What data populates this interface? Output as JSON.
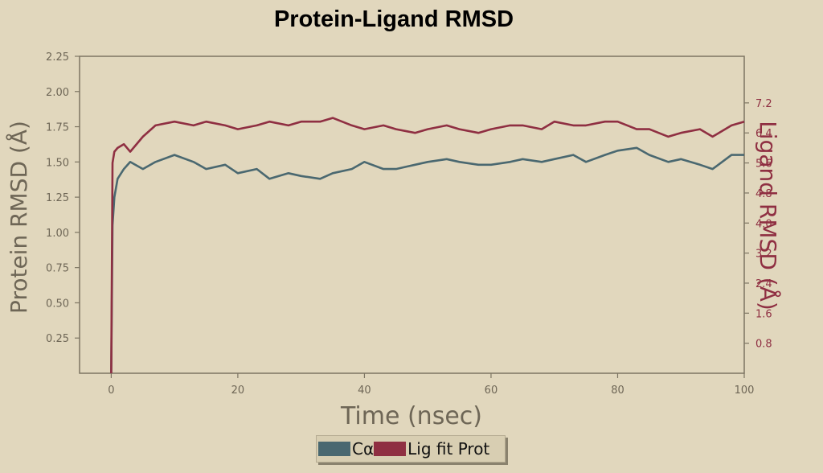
{
  "chart_data": {
    "type": "line",
    "title": "Protein-Ligand RMSD",
    "xlabel": "Time (nsec)",
    "ylabel": "Protein RMSD (Å)",
    "y2label": "Ligand RMSD (Å)",
    "xlim": [
      -5,
      100
    ],
    "ylim": [
      0,
      2.25
    ],
    "y2lim": [
      0,
      8.44
    ],
    "x_ticks": [
      "0",
      "20",
      "40",
      "60",
      "80",
      "100"
    ],
    "y_ticks": [
      "0.25",
      "0.50",
      "0.75",
      "1.00",
      "1.25",
      "1.50",
      "1.75",
      "2.00",
      "2.25"
    ],
    "y2_ticks": [
      "0.8",
      "1.6",
      "2.4",
      "3.2",
      "4.0",
      "4.8",
      "5.6",
      "6.4",
      "7.2"
    ],
    "grid": false,
    "legend_position": "bottom-center",
    "colors": {
      "background": "#e1d7bd",
      "axes": "#7d7563",
      "ca": "#4a6870",
      "lig": "#8f2f42"
    },
    "series": [
      {
        "name": "Cα",
        "axis": "left",
        "x": [
          0,
          0.2,
          0.5,
          1,
          2,
          3,
          5,
          7,
          10,
          13,
          15,
          18,
          20,
          23,
          25,
          28,
          30,
          33,
          35,
          38,
          40,
          43,
          45,
          48,
          50,
          53,
          55,
          58,
          60,
          63,
          65,
          68,
          70,
          73,
          75,
          78,
          80,
          83,
          85,
          88,
          90,
          93,
          95,
          98,
          100
        ],
        "values": [
          0,
          1.05,
          1.25,
          1.38,
          1.45,
          1.5,
          1.45,
          1.5,
          1.55,
          1.5,
          1.45,
          1.48,
          1.42,
          1.45,
          1.38,
          1.42,
          1.4,
          1.38,
          1.42,
          1.45,
          1.5,
          1.45,
          1.45,
          1.48,
          1.5,
          1.52,
          1.5,
          1.48,
          1.48,
          1.5,
          1.52,
          1.5,
          1.52,
          1.55,
          1.5,
          1.55,
          1.58,
          1.6,
          1.55,
          1.5,
          1.52,
          1.48,
          1.45,
          1.55,
          1.55
        ]
      },
      {
        "name": "Lig fit Prot",
        "axis": "right",
        "x": [
          0,
          0.2,
          0.5,
          1,
          2,
          3,
          5,
          7,
          10,
          13,
          15,
          18,
          20,
          23,
          25,
          28,
          30,
          33,
          35,
          38,
          40,
          43,
          45,
          48,
          50,
          53,
          55,
          58,
          60,
          63,
          65,
          68,
          70,
          73,
          75,
          78,
          80,
          83,
          85,
          88,
          90,
          93,
          95,
          98,
          100
        ],
        "values": [
          0,
          5.6,
          5.9,
          6.0,
          6.1,
          5.9,
          6.3,
          6.6,
          6.7,
          6.6,
          6.7,
          6.6,
          6.5,
          6.6,
          6.7,
          6.6,
          6.7,
          6.7,
          6.8,
          6.6,
          6.5,
          6.6,
          6.5,
          6.4,
          6.5,
          6.6,
          6.5,
          6.4,
          6.5,
          6.6,
          6.6,
          6.5,
          6.7,
          6.6,
          6.6,
          6.7,
          6.7,
          6.5,
          6.5,
          6.3,
          6.4,
          6.5,
          6.3,
          6.6,
          6.7
        ]
      }
    ]
  }
}
